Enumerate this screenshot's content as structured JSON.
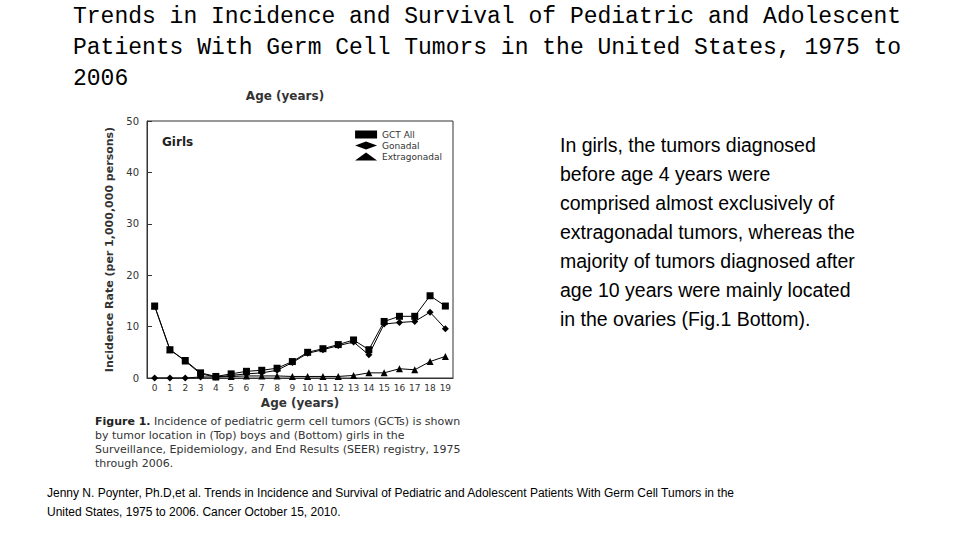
{
  "slide": {
    "title": "Trends in Incidence and Survival of Pediatric and Adolescent Patients With Germ Cell Tumors in the United States, 1975 to 2006",
    "body": "In girls, the tumors diagnosed before age 4 years were comprised almost exclusively of extragonadal tumors, whereas the majority of tumors diagnosed after age 10 years were mainly located in the ovaries (Fig.1 Bottom).",
    "citation": "Jenny N. Poynter, Ph.D,et al. Trends in Incidence and Survival of Pediatric and Adolescent Patients With Germ Cell Tumors in the United States, 1975 to 2006. Cancer October 15, 2010.",
    "figure_caption": {
      "label": "Figure 1.",
      "text": "Incidence of pediatric germ cell tumors (GCTs) is shown by tumor location in (Top) boys and (Bottom) girls in the Surveillance, Epidemiology, and End Results (SEER) registry, 1975 through 2006."
    }
  },
  "chart_data": {
    "type": "line",
    "title": "Age (years)",
    "annotation": "Girls",
    "x_label": "Age (years)",
    "y_label": "Incidence Rate (per 1,000,000 persons)",
    "categories": [
      "0",
      "1",
      "2",
      "3",
      "4",
      "5",
      "6",
      "7",
      "8",
      "9",
      "10",
      "11",
      "12",
      "13",
      "14",
      "15",
      "16",
      "17",
      "18",
      "19"
    ],
    "series": [
      {
        "name": "GCT All",
        "color": "#000000",
        "marker": "square",
        "values": [
          14,
          5.5,
          3.4,
          1,
          0.3,
          0.8,
          1.3,
          1.5,
          1.9,
          3.2,
          5,
          5.7,
          6.5,
          7.4,
          5.5,
          11,
          12,
          12,
          16,
          14
        ]
      },
      {
        "name": "Gonadal",
        "color": "#000000",
        "marker": "diamond",
        "values": [
          0,
          0,
          0,
          0.2,
          0.2,
          0.5,
          0.8,
          1,
          1.5,
          3,
          4.8,
          5.5,
          6.3,
          7,
          4.5,
          10.5,
          10.8,
          11,
          12.8,
          9.6
        ]
      },
      {
        "name": "Extragonadal",
        "color": "#000000",
        "marker": "triangle",
        "values": [
          14,
          5.5,
          3.3,
          0.8,
          0.2,
          0.3,
          0.4,
          0.4,
          0.4,
          0.3,
          0.3,
          0.3,
          0.3,
          0.5,
          1,
          1,
          1.8,
          1.6,
          3.2,
          4.2
        ]
      }
    ],
    "ylim": [
      0,
      50
    ],
    "yticks": [
      0,
      10,
      20,
      30,
      40,
      50
    ],
    "grid": false,
    "legend": "top-right"
  }
}
